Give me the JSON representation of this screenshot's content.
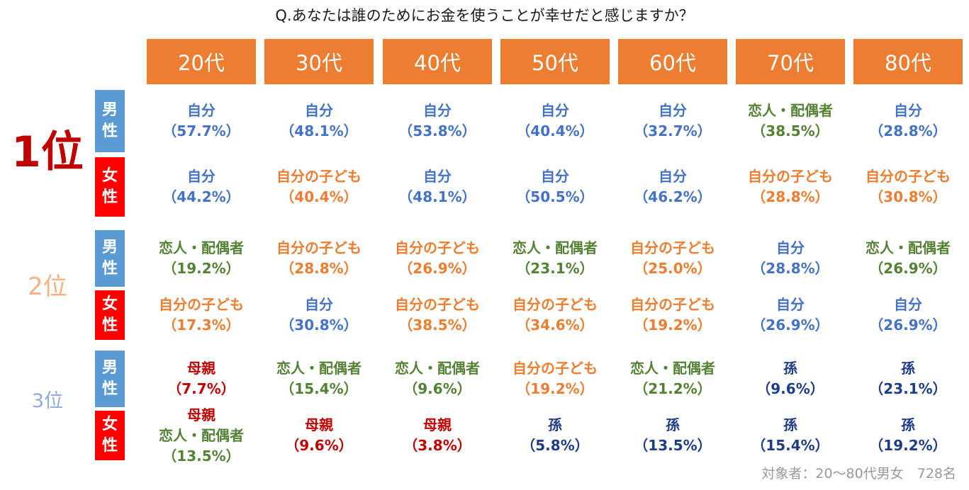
{
  "title": "Q.あなたは誰のためにお金を使うことが幸せだと感じますか？",
  "colors": {
    "header_bg": "#ED7D31",
    "male": "#5B9BD5",
    "female": "#FF0000",
    "rank1": "#C00000",
    "rank2": "#F4B183",
    "rank3": "#8FAADC",
    "自分": "#4472C4",
    "自分の子ども": "#ED7D31",
    "恋人・配偶者": "#548235",
    "母親": "#C00000",
    "孫": "#1F3C88"
  },
  "gender_labels": {
    "male": [
      "男",
      "性"
    ],
    "female": [
      "女",
      "性"
    ]
  },
  "footnote": "対象者：20～80代男女　728名",
  "chart_data": {
    "type": "table",
    "title": "Q.あなたは誰のためにお金を使うことが幸せだと感じますか？",
    "columns": [
      "20代",
      "30代",
      "40代",
      "50代",
      "60代",
      "70代",
      "80代"
    ],
    "ranks": [
      {
        "label": "1位",
        "rows": [
          {
            "gender": "男性",
            "cells": [
              {
                "lines": [
                  "自分"
                ],
                "value": "（57.7%）"
              },
              {
                "lines": [
                  "自分"
                ],
                "value": "（48.1%）"
              },
              {
                "lines": [
                  "自分"
                ],
                "value": "（53.8%）"
              },
              {
                "lines": [
                  "自分"
                ],
                "value": "（40.4%）"
              },
              {
                "lines": [
                  "自分"
                ],
                "value": "（32.7%）"
              },
              {
                "lines": [
                  "恋人・配偶者"
                ],
                "value": "（38.5%）"
              },
              {
                "lines": [
                  "自分"
                ],
                "value": "（28.8%）"
              }
            ]
          },
          {
            "gender": "女性",
            "cells": [
              {
                "lines": [
                  "自分"
                ],
                "value": "（44.2%）"
              },
              {
                "lines": [
                  "自分の子ども"
                ],
                "value": "（40.4%）"
              },
              {
                "lines": [
                  "自分"
                ],
                "value": "（48.1%）"
              },
              {
                "lines": [
                  "自分"
                ],
                "value": "（50.5%）"
              },
              {
                "lines": [
                  "自分"
                ],
                "value": "（46.2%）"
              },
              {
                "lines": [
                  "自分の子ども"
                ],
                "value": "（28.8%）"
              },
              {
                "lines": [
                  "自分の子ども"
                ],
                "value": "（30.8%）"
              }
            ]
          }
        ]
      },
      {
        "label": "2位",
        "rows": [
          {
            "gender": "男性",
            "cells": [
              {
                "lines": [
                  "恋人・配偶者"
                ],
                "value": "（19.2%）"
              },
              {
                "lines": [
                  "自分の子ども"
                ],
                "value": "（28.8%）"
              },
              {
                "lines": [
                  "自分の子ども"
                ],
                "value": "（26.9%）"
              },
              {
                "lines": [
                  "恋人・配偶者"
                ],
                "value": "（23.1%）"
              },
              {
                "lines": [
                  "自分の子ども"
                ],
                "value": "（25.0%）"
              },
              {
                "lines": [
                  "自分"
                ],
                "value": "（28.8%）"
              },
              {
                "lines": [
                  "恋人・配偶者"
                ],
                "value": "（26.9%）"
              }
            ]
          },
          {
            "gender": "女性",
            "cells": [
              {
                "lines": [
                  "自分の子ども"
                ],
                "value": "（17.3%）"
              },
              {
                "lines": [
                  "自分"
                ],
                "value": "（30.8%）"
              },
              {
                "lines": [
                  "自分の子ども"
                ],
                "value": "（38.5%）"
              },
              {
                "lines": [
                  "自分の子ども"
                ],
                "value": "（34.6%）"
              },
              {
                "lines": [
                  "自分の子ども"
                ],
                "value": "（19.2%）"
              },
              {
                "lines": [
                  "自分"
                ],
                "value": "（26.9%）"
              },
              {
                "lines": [
                  "自分"
                ],
                "value": "（26.9%）"
              }
            ]
          }
        ]
      },
      {
        "label": "3位",
        "rows": [
          {
            "gender": "男性",
            "cells": [
              {
                "lines": [
                  "母親"
                ],
                "value": "（7.7%）"
              },
              {
                "lines": [
                  "恋人・配偶者"
                ],
                "value": "（15.4%）"
              },
              {
                "lines": [
                  "恋人・配偶者"
                ],
                "value": "（9.6%）"
              },
              {
                "lines": [
                  "自分の子ども"
                ],
                "value": "（19.2%）"
              },
              {
                "lines": [
                  "恋人・配偶者"
                ],
                "value": "（21.2%）"
              },
              {
                "lines": [
                  "孫"
                ],
                "value": "（9.6%）"
              },
              {
                "lines": [
                  "孫"
                ],
                "value": "（23.1%）"
              }
            ]
          },
          {
            "gender": "女性",
            "cells": [
              {
                "lines": [
                  "母親",
                  "恋人・配偶者"
                ],
                "value": "（13.5%）"
              },
              {
                "lines": [
                  "母親"
                ],
                "value": "（9.6%）"
              },
              {
                "lines": [
                  "母親"
                ],
                "value": "（3.8%）"
              },
              {
                "lines": [
                  "孫"
                ],
                "value": "（5.8%）"
              },
              {
                "lines": [
                  "孫"
                ],
                "value": "（13.5%）"
              },
              {
                "lines": [
                  "孫"
                ],
                "value": "（15.4%）"
              },
              {
                "lines": [
                  "孫"
                ],
                "value": "（19.2%）"
              }
            ]
          }
        ]
      }
    ]
  }
}
